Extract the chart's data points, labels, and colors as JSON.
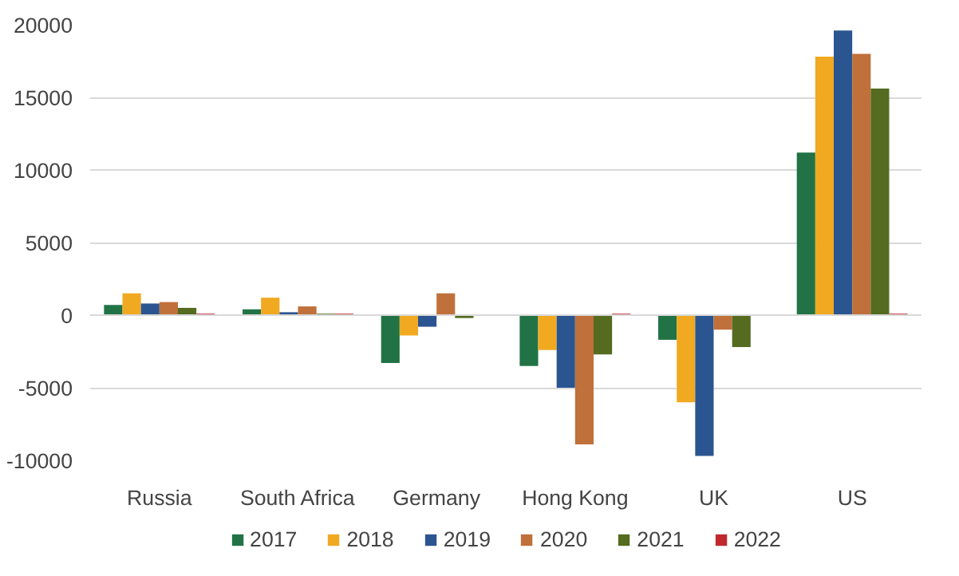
{
  "chart_data": {
    "type": "bar",
    "categories": [
      "Russia",
      "South Africa",
      "Germany",
      "Hong Kong",
      "UK",
      "US"
    ],
    "series": [
      {
        "name": "2017",
        "color": "#217346",
        "values": [
          700,
          400,
          -3300,
          -3500,
          -1700,
          11200
        ]
      },
      {
        "name": "2018",
        "color": "#f0a920",
        "values": [
          1500,
          1200,
          -1400,
          -2400,
          -6000,
          17800
        ]
      },
      {
        "name": "2019",
        "color": "#2b5591",
        "values": [
          800,
          200,
          -800,
          -5000,
          -9700,
          19600
        ]
      },
      {
        "name": "2020",
        "color": "#c0703a",
        "values": [
          900,
          600,
          1500,
          -8900,
          -1000,
          18000
        ]
      },
      {
        "name": "2021",
        "color": "#546b20",
        "values": [
          500,
          100,
          -200,
          -2700,
          -2200,
          15600
        ]
      },
      {
        "name": "2022",
        "color": "#c0282d",
        "values": [
          100,
          100,
          0,
          100,
          0,
          100
        ]
      }
    ],
    "ylim": [
      -10000,
      20000
    ],
    "yticks": [
      -10000,
      -5000,
      0,
      5000,
      10000,
      15000,
      20000
    ],
    "grid": "y",
    "legend": "bottom"
  }
}
